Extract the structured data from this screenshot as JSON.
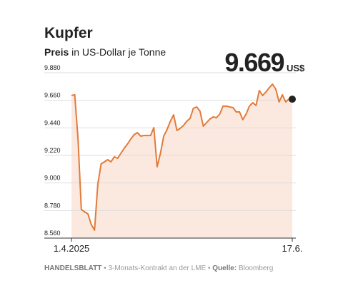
{
  "chart_data": {
    "type": "area-line",
    "title": "Kupfer",
    "subtitle": [
      "Preis",
      "in US-Dollar je Tonne"
    ],
    "unit": "US$",
    "footer": [
      "HANDELSBLATT",
      "•",
      "3-Monats-Kontrakt an der LME",
      "•",
      "Quelle:",
      "Bloomberg"
    ],
    "categories": [
      "1.4.2025",
      null,
      null,
      null,
      null,
      null,
      null,
      null,
      null,
      null,
      null,
      null,
      null,
      null,
      null,
      null,
      null,
      null,
      null,
      null,
      null,
      null,
      null,
      null,
      null,
      null,
      null,
      null,
      null,
      null,
      null,
      null,
      null,
      null,
      null,
      null,
      null,
      null,
      null,
      null,
      null,
      null,
      null,
      null,
      null,
      null,
      null,
      null,
      null,
      null,
      null,
      null,
      null,
      null,
      null,
      null,
      null,
      null,
      null,
      null,
      null,
      null,
      null,
      null,
      null,
      null,
      null,
      "17.6."
    ],
    "values": [
      9698,
      9704,
      9351,
      8788,
      8770,
      8753,
      8668,
      8623,
      8992,
      9152,
      9169,
      9186,
      9169,
      9209,
      9197,
      9237,
      9277,
      9311,
      9351,
      9385,
      9402,
      9374,
      9379,
      9379,
      9379,
      9442,
      9129,
      9237,
      9374,
      9425,
      9493,
      9544,
      9419,
      9436,
      9459,
      9493,
      9516,
      9596,
      9607,
      9573,
      9453,
      9482,
      9510,
      9527,
      9521,
      9550,
      9613,
      9613,
      9607,
      9601,
      9567,
      9567,
      9505,
      9550,
      9613,
      9641,
      9618,
      9738,
      9698,
      9726,
      9760,
      9789,
      9749,
      9647,
      9704,
      9647,
      9670,
      9669
    ],
    "value_labels": [
      null,
      null,
      null,
      null,
      null,
      null,
      null,
      null,
      null,
      null,
      null,
      null,
      null,
      null,
      null,
      null,
      null,
      null,
      null,
      null,
      null,
      null,
      null,
      null,
      null,
      null,
      null,
      null,
      null,
      null,
      null,
      null,
      null,
      null,
      null,
      null,
      null,
      null,
      null,
      null,
      null,
      null,
      null,
      null,
      null,
      null,
      null,
      null,
      null,
      null,
      null,
      null,
      null,
      null,
      null,
      null,
      null,
      null,
      null,
      null,
      null,
      null,
      null,
      null,
      null,
      null,
      null,
      "9.669"
    ],
    "color": "#e27b3a",
    "fill": "#fbe8de",
    "end_marker_color": "#222222",
    "ylim": [
      8560,
      9880
    ],
    "yticks": [
      {
        "value": 8560,
        "label": "8.560"
      },
      {
        "value": 8780,
        "label": "8.780"
      },
      {
        "value": 9000,
        "label": "9.000"
      },
      {
        "value": 9220,
        "label": "9.220"
      },
      {
        "value": 9440,
        "label": "9.440"
      },
      {
        "value": 9660,
        "label": "9.660"
      },
      {
        "value": 9880,
        "label": "9.880"
      }
    ],
    "grid": true
  }
}
